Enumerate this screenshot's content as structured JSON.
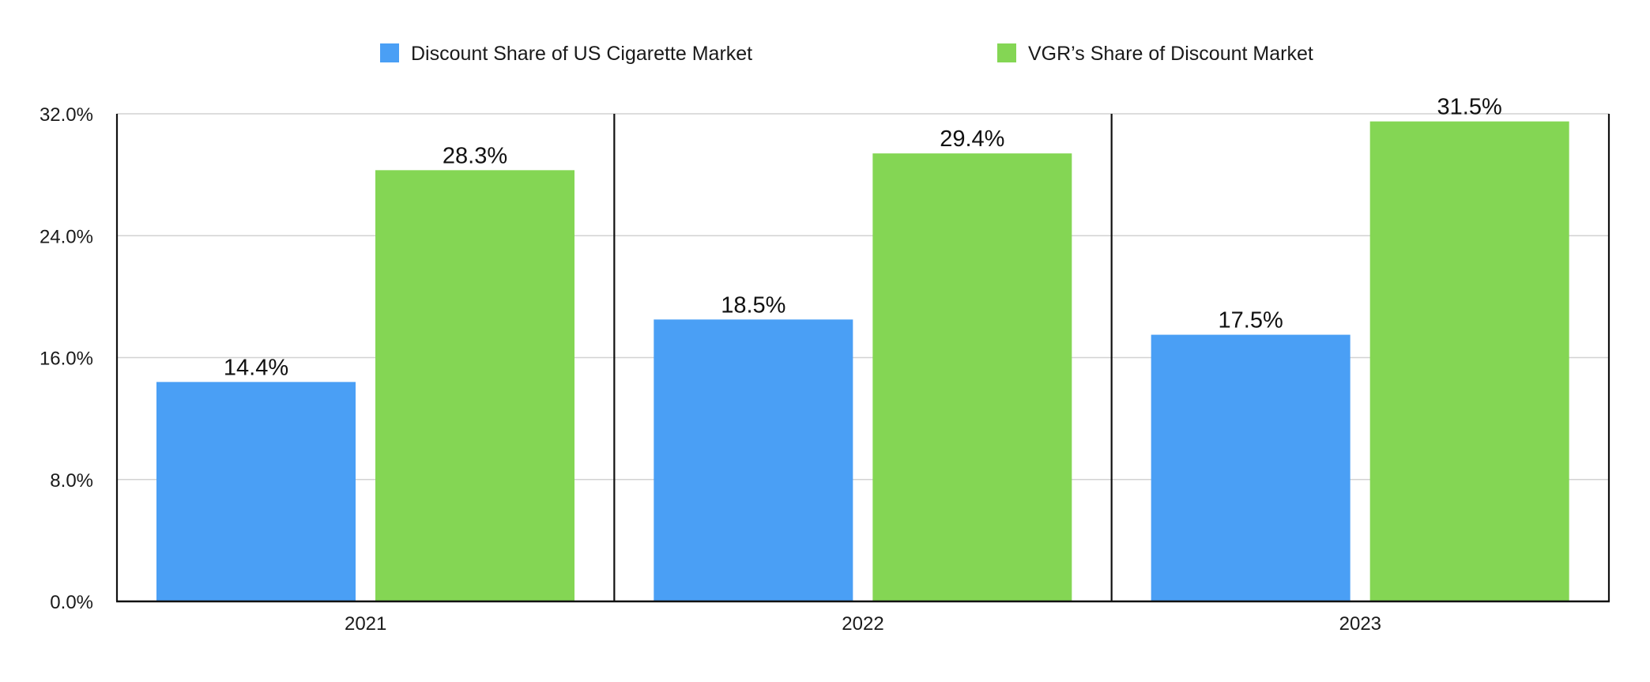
{
  "chart_data": {
    "type": "bar",
    "title": "",
    "xlabel": "",
    "ylabel": "",
    "categories": [
      "2021",
      "2022",
      "2023"
    ],
    "series": [
      {
        "name": "Discount Share of US Cigarette Market",
        "color": "#4A9FF5",
        "values": [
          14.4,
          18.5,
          17.5
        ],
        "labels": [
          "14.4%",
          "18.5%",
          "17.5%"
        ]
      },
      {
        "name": "VGR’s Share of Discount Market",
        "color": "#84D654",
        "values": [
          28.3,
          29.4,
          31.5
        ],
        "labels": [
          "28.3%",
          "29.4%",
          "31.5%"
        ]
      }
    ],
    "ylim": [
      0,
      32
    ],
    "y_ticks": [
      0,
      8,
      16,
      24,
      32
    ],
    "y_tick_labels": [
      "0.0%",
      "8.0%",
      "16.0%",
      "24.0%",
      "32.0%"
    ],
    "grid": true,
    "legend_position": "top-center"
  }
}
